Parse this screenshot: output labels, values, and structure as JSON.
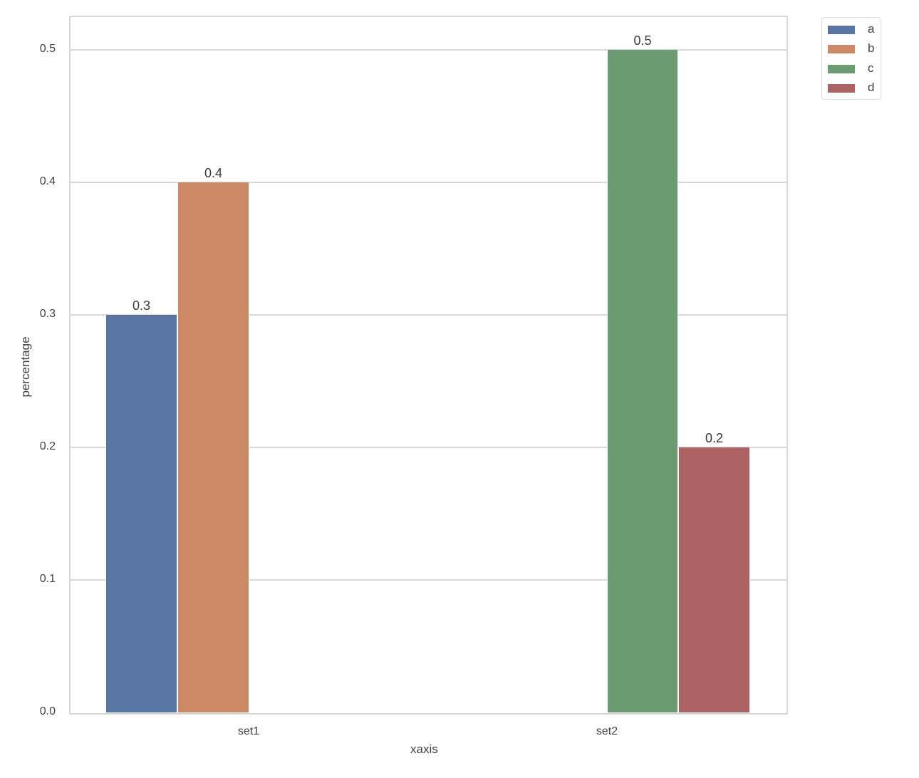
{
  "chart_data": {
    "type": "bar",
    "title": "",
    "xlabel": "xaxis",
    "ylabel": "percentage",
    "categories": [
      "set1",
      "set2"
    ],
    "series": [
      {
        "name": "a",
        "color": "#5975a4",
        "values": [
          0.3,
          null
        ]
      },
      {
        "name": "b",
        "color": "#cc8963",
        "values": [
          0.4,
          null
        ]
      },
      {
        "name": "c",
        "color": "#6b9c71",
        "values": [
          null,
          0.5
        ]
      },
      {
        "name": "d",
        "color": "#ac6162",
        "values": [
          null,
          0.2
        ]
      }
    ],
    "bar_labels": [
      "0.3",
      "0.4",
      "0.5",
      "0.2"
    ],
    "ylim": [
      0,
      0.525
    ],
    "yticks": [
      "0.0",
      "0.1",
      "0.2",
      "0.3",
      "0.4",
      "0.5"
    ],
    "grid": true,
    "legend_position": "outside upper right",
    "legend": [
      "a",
      "b",
      "c",
      "d"
    ]
  }
}
